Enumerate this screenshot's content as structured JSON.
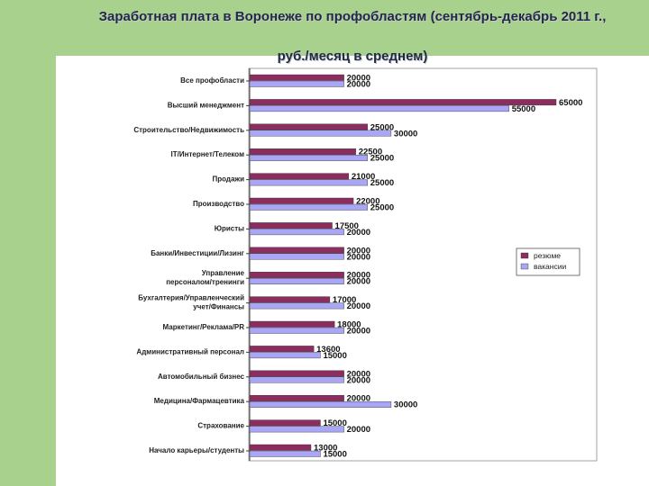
{
  "page": {
    "title": "Заработная плата в Воронеже по профобластям  (сентябрь-декабрь 2011 г.,",
    "subtitle": "руб./месяц в среднем)"
  },
  "colors": {
    "resume": "#8b2d5e",
    "vacancy": "#a9a6f5",
    "background_green": "#a9d18e"
  },
  "chart_data": {
    "type": "bar",
    "orientation": "horizontal",
    "title": "Заработная плата в Воронеже по профобластям  (сентябрь-декабрь 2011 г., руб./месяц в среднем)",
    "xlim": [
      0,
      65000
    ],
    "legend_position": "right",
    "categories": [
      "Все профобласти",
      "Высший менеджмент",
      "Строительство/Недвижимость",
      "IT/Интернет/Телеком",
      "Продажи",
      "Производство",
      "Юристы",
      "Банки/Инвестиции/Лизинг",
      "Управление персоналом/тренинги",
      "Бухгалтерия/Управленческий учет/Финансы",
      "Маркетинг/Реклама/PR",
      "Административный персонал",
      "Автомобильный бизнес",
      "Медицина/Фармацевтика",
      "Страхование",
      "Начало карьеры/студенты"
    ],
    "category_lines": [
      [
        "Все профобласти"
      ],
      [
        "Высший менеджмент"
      ],
      [
        "Строительство/Недвижимость"
      ],
      [
        "IT/Интернет/Телеком"
      ],
      [
        "Продажи"
      ],
      [
        "Производство"
      ],
      [
        "Юристы"
      ],
      [
        "Банки/Инвестиции/Лизинг"
      ],
      [
        "Управление",
        "персоналом/тренинги"
      ],
      [
        "Бухгалтерия/Управленческий",
        "учет/Финансы"
      ],
      [
        "Маркетинг/Реклама/PR"
      ],
      [
        "Административный персонал"
      ],
      [
        "Автомобильный бизнес"
      ],
      [
        "Медицина/Фармацевтика"
      ],
      [
        "Страхование"
      ],
      [
        "Начало карьеры/студенты"
      ]
    ],
    "series": [
      {
        "name": "резюме",
        "values": [
          20000,
          65000,
          25000,
          22500,
          21000,
          22000,
          17500,
          20000,
          20000,
          17000,
          18000,
          13600,
          20000,
          20000,
          15000,
          13000
        ]
      },
      {
        "name": "вакансии",
        "values": [
          20000,
          55000,
          30000,
          25000,
          25000,
          25000,
          20000,
          20000,
          20000,
          20000,
          20000,
          15000,
          20000,
          30000,
          20000,
          15000
        ]
      }
    ]
  }
}
